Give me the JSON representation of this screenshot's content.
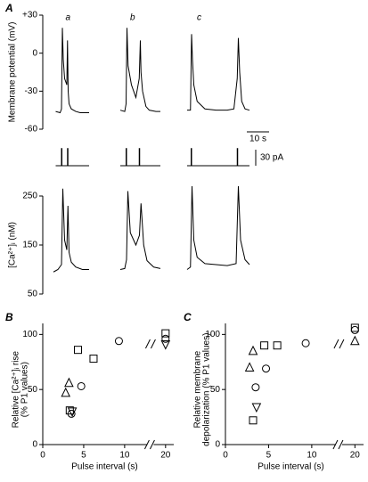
{
  "chart_data": [
    {
      "type": "line",
      "panel": "A",
      "ylabel": "Membrane potential (mV)",
      "xlim": [
        0,
        92
      ],
      "ylim": [
        -60,
        30
      ],
      "yticks": [
        {
          "value": 30,
          "label": "+30"
        },
        0,
        -30,
        -60
      ],
      "scale_bar": {
        "value": 10,
        "label": "10 s",
        "dir": "x"
      },
      "series": [
        {
          "name": "a",
          "color": "#000000",
          "x": [
            3,
            5,
            5.6,
            6,
            6.4,
            7,
            8,
            8.3,
            8.6,
            9,
            10,
            12,
            14,
            18
          ],
          "values": [
            -46,
            -47,
            -44,
            20,
            -5,
            -20,
            -25,
            10,
            -30,
            -40,
            -44,
            -46,
            -47,
            -47
          ]
        },
        {
          "name": "b",
          "color": "#000000",
          "x": [
            32,
            34,
            34.6,
            35,
            35.5,
            37,
            39,
            40.5,
            41,
            41.3,
            42,
            43.5,
            45,
            48,
            50
          ],
          "values": [
            -45,
            -46,
            -40,
            20,
            -10,
            -25,
            -35,
            -20,
            10,
            -15,
            -30,
            -42,
            -45,
            -46,
            -46
          ]
        },
        {
          "name": "c",
          "color": "#000000",
          "x": [
            62,
            63.5,
            64,
            64.4,
            65,
            66.5,
            70,
            75,
            80,
            83,
            84.5,
            85,
            85.6,
            86.5,
            88,
            90
          ],
          "values": [
            -45,
            -45,
            15,
            -5,
            -25,
            -38,
            -44,
            -45,
            -45,
            -44,
            -20,
            12,
            -15,
            -38,
            -44,
            -45
          ]
        }
      ]
    },
    {
      "type": "line",
      "xlim": [
        0,
        92
      ],
      "ylim": [
        0,
        40
      ],
      "scale_bar": {
        "value": 30,
        "label": "30 pA",
        "dir": "y"
      },
      "series": [
        {
          "color": "#000000",
          "x": [
            3,
            5.6,
            5.6,
            5.8,
            5.8,
            8.3,
            8.3,
            8.5,
            8.5,
            18
          ],
          "values": [
            0,
            0,
            32,
            32,
            0,
            0,
            32,
            32,
            0,
            0
          ]
        },
        {
          "color": "#000000",
          "x": [
            32,
            34.6,
            34.6,
            34.8,
            34.8,
            40.5,
            40.5,
            40.7,
            40.7,
            50
          ],
          "values": [
            0,
            0,
            32,
            32,
            0,
            0,
            32,
            32,
            0,
            0
          ]
        },
        {
          "color": "#000000",
          "x": [
            62,
            63.8,
            63.8,
            64,
            64,
            84.5,
            84.5,
            84.7,
            84.7,
            90
          ],
          "values": [
            0,
            0,
            32,
            32,
            0,
            0,
            32,
            32,
            0,
            0
          ]
        }
      ]
    },
    {
      "type": "line",
      "ylabel": "[Ca²⁺]ᵢ (nM)",
      "xlim": [
        0,
        92
      ],
      "ylim": [
        50,
        280
      ],
      "yticks": [
        250,
        150,
        50
      ],
      "series": [
        {
          "color": "#000000",
          "x": [
            2,
            4,
            5.6,
            6.2,
            7,
            8,
            8.5,
            9,
            10,
            12,
            15,
            18
          ],
          "values": [
            95,
            100,
            110,
            265,
            160,
            140,
            230,
            135,
            115,
            105,
            100,
            100
          ]
        },
        {
          "color": "#000000",
          "x": [
            32,
            34,
            34.8,
            35.4,
            36.5,
            39,
            40.6,
            41.3,
            42.5,
            44,
            47,
            50
          ],
          "values": [
            100,
            102,
            120,
            260,
            175,
            150,
            170,
            235,
            150,
            118,
            105,
            102
          ]
        },
        {
          "color": "#000000",
          "x": [
            62,
            63.5,
            64.2,
            65,
            66.5,
            70,
            75,
            80,
            84,
            85,
            86,
            88,
            90
          ],
          "values": [
            100,
            105,
            270,
            160,
            125,
            112,
            110,
            108,
            112,
            270,
            160,
            120,
            110
          ]
        }
      ]
    },
    {
      "type": "scatter",
      "panel": "B",
      "ylabel": [
        "Relative [Ca²⁺]ᵢ rise",
        "(% P1 values)"
      ],
      "xlabel": "Pulse interval (s)",
      "xlim": [
        0,
        21
      ],
      "xbreak": [
        13,
        18
      ],
      "ylim": [
        0,
        110
      ],
      "xticks": [
        0,
        5,
        10,
        20
      ],
      "yticks": [
        0,
        50,
        100
      ],
      "series": [
        {
          "marker": "triangle",
          "color": "#000000",
          "x": [
            2.8,
            3.2
          ],
          "values": [
            47,
            56
          ]
        },
        {
          "marker": "square",
          "color": "#000000",
          "x": [
            3.3,
            4.3,
            6.2,
            20
          ],
          "values": [
            31,
            86,
            78,
            101
          ]
        },
        {
          "marker": "circle",
          "color": "#000000",
          "x": [
            3.5,
            4.7,
            9.3,
            20
          ],
          "values": [
            28,
            53,
            94,
            96
          ]
        },
        {
          "marker": "triangle-down",
          "color": "#000000",
          "x": [
            3.6,
            20
          ],
          "values": [
            30,
            91
          ]
        }
      ]
    },
    {
      "type": "scatter",
      "panel": "C",
      "ylabel": [
        "Relative membrane",
        "depolarization (% P1 values)"
      ],
      "xlabel": "Pulse interval (s)",
      "xlim": [
        0,
        21
      ],
      "xbreak": [
        13,
        18
      ],
      "ylim": [
        0,
        110
      ],
      "xticks": [
        0,
        5,
        10,
        20
      ],
      "yticks": [
        0,
        50,
        100
      ],
      "series": [
        {
          "marker": "triangle",
          "color": "#000000",
          "x": [
            2.8,
            3.2,
            20
          ],
          "values": [
            70,
            85,
            94
          ]
        },
        {
          "marker": "square",
          "color": "#000000",
          "x": [
            3.2,
            4.5,
            6,
            20
          ],
          "values": [
            22,
            90,
            90,
            106
          ]
        },
        {
          "marker": "circle",
          "color": "#000000",
          "x": [
            3.5,
            4.7,
            9.3,
            20
          ],
          "values": [
            52,
            69,
            92,
            104
          ]
        },
        {
          "marker": "triangle-down",
          "color": "#000000",
          "x": [
            3.6
          ],
          "values": [
            34
          ]
        }
      ]
    }
  ]
}
